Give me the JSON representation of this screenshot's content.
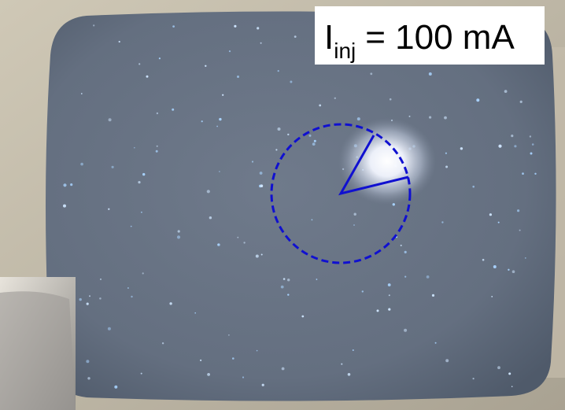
{
  "label": {
    "symbol": "I",
    "subscript": "inj",
    "text": "= 100 mA"
  }
}
